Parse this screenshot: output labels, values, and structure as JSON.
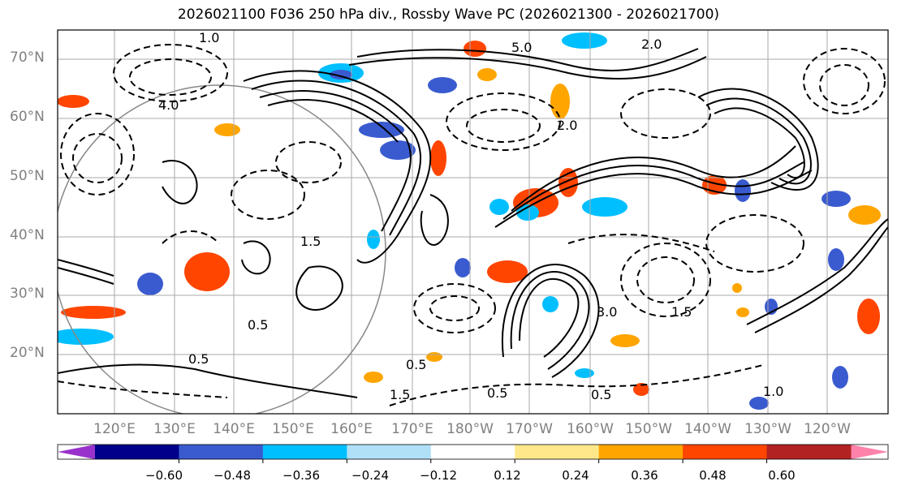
{
  "title": "2026021100 F036 250 hPa div., Rossby Wave PC (2026021300 - 2026021700)",
  "lat_labels": [
    "70°N",
    "60°N",
    "50°N",
    "40°N",
    "30°N",
    "20°N"
  ],
  "lon_labels": [
    "120°E",
    "130°E",
    "140°E",
    "150°E",
    "160°E",
    "170°E",
    "180°W",
    "170°W",
    "160°W",
    "150°W",
    "140°W",
    "130°W",
    "120°W"
  ],
  "colorbar": {
    "ticks": [
      "−0.60",
      "−0.48",
      "−0.36",
      "−0.24",
      "−0.12",
      "0.12",
      "0.24",
      "0.36",
      "0.48",
      "0.60"
    ],
    "colors": [
      "#9932cc",
      "#00008b",
      "#3a5bcf",
      "#00bfff",
      "#b0e0f8",
      "#ffffff",
      "#ffe88a",
      "#ffa500",
      "#ff4500",
      "#b22222",
      "#ff82ab"
    ]
  },
  "contour_labels": [
    "5.0",
    "1.0",
    "0.5",
    "1.5",
    "2.0",
    "3.0",
    "4.0",
    "0.5",
    "1.5",
    "2.0",
    "0.5",
    "0.5",
    "0.5",
    "1.0",
    "1.5"
  ]
}
